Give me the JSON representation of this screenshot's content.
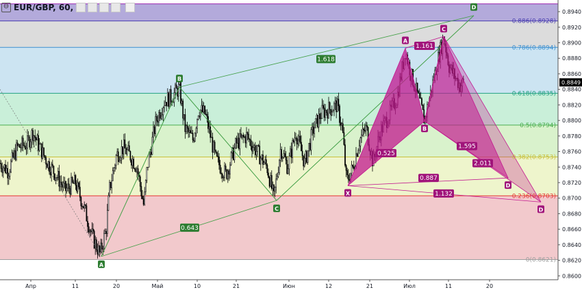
{
  "legend": {
    "symbol": "EUR/GBP, 60,",
    "collapse_glyph": "⊖"
  },
  "colors": {
    "candle": "#000000",
    "pattern_fill": "#c2188f",
    "pattern_label": "#a0147a",
    "green_line": "#43a047",
    "green_label": "#2e7d32",
    "price_tag_bg": "#000000"
  },
  "chart_data": {
    "type": "candlestick",
    "symbol": "EUR/GBP",
    "interval": "60",
    "ylim": [
      0.8595,
      0.8955
    ],
    "x_ticks": [
      {
        "i": 45,
        "label": "Апр"
      },
      {
        "i": 110,
        "label": "11"
      },
      {
        "i": 170,
        "label": "20"
      },
      {
        "i": 230,
        "label": "Май"
      },
      {
        "i": 288,
        "label": "10"
      },
      {
        "i": 345,
        "label": "21"
      },
      {
        "i": 422,
        "label": "Июн"
      },
      {
        "i": 480,
        "label": "12"
      },
      {
        "i": 540,
        "label": "21"
      },
      {
        "i": 598,
        "label": "Июл"
      },
      {
        "i": 655,
        "label": "11"
      },
      {
        "i": 715,
        "label": "20"
      }
    ],
    "y_ticks": [
      "0.8600",
      "0.8620",
      "0.8640",
      "0.8660",
      "0.8680",
      "0.8700",
      "0.8720",
      "0.8740",
      "0.8760",
      "0.8780",
      "0.8800",
      "0.8820",
      "0.8840",
      "0.8860",
      "0.8880",
      "0.8900",
      "0.8920",
      "0.8940"
    ],
    "y_tick_values": [
      0.86,
      0.862,
      0.864,
      0.866,
      0.868,
      0.87,
      0.872,
      0.874,
      0.876,
      0.878,
      0.88,
      0.882,
      0.884,
      0.886,
      0.888,
      0.89,
      0.892,
      0.894
    ],
    "current_price": {
      "value": 0.8849,
      "label": "0.8849"
    },
    "fibonacci": [
      {
        "ratio": 1.0,
        "price": 0.895,
        "label": "",
        "line": "#9c27b0"
      },
      {
        "ratio": 0.886,
        "price": 0.8928,
        "label": "0.886(0.8928)",
        "line": "#4a3fb0",
        "fill": "#b3aadb"
      },
      {
        "ratio": 0.786,
        "price": 0.8894,
        "label": "0.786(0.8894)",
        "line": "#3c8fd0",
        "fill": "#dcdcdc"
      },
      {
        "ratio": 0.618,
        "price": 0.8835,
        "label": "0.618(0.8835)",
        "line": "#20a080",
        "fill": "#cce4f2"
      },
      {
        "ratio": 0.5,
        "price": 0.8794,
        "label": "0.5(0.8794)",
        "line": "#4caf50",
        "fill": "#c9efd9"
      },
      {
        "ratio": 0.382,
        "price": 0.8753,
        "label": "0.382(0.8753)",
        "line": "#c8c03c",
        "fill": "#d9f2cc"
      },
      {
        "ratio": 0.236,
        "price": 0.8703,
        "label": "0.236(0.8703)",
        "line": "#e53935",
        "fill": "#eef5cc"
      },
      {
        "ratio": 0.0,
        "price": 0.8621,
        "label": "0(0.8621)",
        "line": "#9e9e9e",
        "fill": "#f2c9cc"
      }
    ],
    "abcd_green": {
      "points": [
        {
          "label": "A",
          "i": 148,
          "price": 0.8625
        },
        {
          "label": "B",
          "i": 262,
          "price": 0.8843
        },
        {
          "label": "C",
          "i": 404,
          "price": 0.8697
        },
        {
          "label": "D",
          "i": 692,
          "price": 0.8935
        }
      ],
      "ratios": [
        {
          "label": "0.643",
          "i": 277,
          "price": 0.8662
        },
        {
          "label": "1.618",
          "i": 476,
          "price": 0.8879
        }
      ]
    },
    "harmonic": {
      "points": [
        {
          "label": "X",
          "i": 508,
          "price": 0.8716
        },
        {
          "label": "A",
          "i": 592,
          "price": 0.8893
        },
        {
          "label": "B",
          "i": 620,
          "price": 0.8799
        },
        {
          "label": "C",
          "i": 648,
          "price": 0.8908
        },
        {
          "label": "D",
          "i": 742,
          "price": 0.8726
        },
        {
          "label": "D",
          "i": 790,
          "price": 0.8695
        }
      ],
      "ratios": [
        {
          "label": "0.525",
          "i": 564,
          "price": 0.8758
        },
        {
          "label": "1.161",
          "i": 620,
          "price": 0.8896
        },
        {
          "label": "1.595",
          "i": 682,
          "price": 0.8767
        },
        {
          "label": "2.011",
          "i": 705,
          "price": 0.8745
        },
        {
          "label": "0.887",
          "i": 626,
          "price": 0.8726
        },
        {
          "label": "1.132",
          "i": 648,
          "price": 0.8706
        }
      ]
    },
    "price_anchors": [
      [
        0,
        0.8745
      ],
      [
        12,
        0.8735
      ],
      [
        25,
        0.8765
      ],
      [
        40,
        0.877
      ],
      [
        48,
        0.8785
      ],
      [
        58,
        0.8765
      ],
      [
        70,
        0.8745
      ],
      [
        82,
        0.873
      ],
      [
        95,
        0.871
      ],
      [
        110,
        0.872
      ],
      [
        122,
        0.869
      ],
      [
        135,
        0.865
      ],
      [
        146,
        0.8628
      ],
      [
        155,
        0.866
      ],
      [
        160,
        0.8712
      ],
      [
        170,
        0.8755
      ],
      [
        180,
        0.8765
      ],
      [
        190,
        0.8755
      ],
      [
        200,
        0.874
      ],
      [
        210,
        0.869
      ],
      [
        215,
        0.874
      ],
      [
        228,
        0.88
      ],
      [
        240,
        0.8825
      ],
      [
        250,
        0.883
      ],
      [
        262,
        0.8842
      ],
      [
        270,
        0.879
      ],
      [
        282,
        0.8775
      ],
      [
        290,
        0.8815
      ],
      [
        300,
        0.8808
      ],
      [
        315,
        0.875
      ],
      [
        330,
        0.873
      ],
      [
        345,
        0.877
      ],
      [
        360,
        0.878
      ],
      [
        375,
        0.876
      ],
      [
        390,
        0.874
      ],
      [
        400,
        0.87
      ],
      [
        410,
        0.8765
      ],
      [
        420,
        0.874
      ],
      [
        432,
        0.8785
      ],
      [
        445,
        0.8745
      ],
      [
        458,
        0.879
      ],
      [
        470,
        0.881
      ],
      [
        482,
        0.8815
      ],
      [
        492,
        0.882
      ],
      [
        500,
        0.879
      ],
      [
        506,
        0.8722
      ],
      [
        515,
        0.8738
      ],
      [
        525,
        0.8775
      ],
      [
        535,
        0.879
      ],
      [
        545,
        0.8745
      ],
      [
        555,
        0.8785
      ],
      [
        570,
        0.881
      ],
      [
        580,
        0.883
      ],
      [
        592,
        0.889
      ],
      [
        600,
        0.886
      ],
      [
        610,
        0.8832
      ],
      [
        620,
        0.88
      ],
      [
        630,
        0.884
      ],
      [
        640,
        0.888
      ],
      [
        648,
        0.8908
      ],
      [
        656,
        0.887
      ],
      [
        665,
        0.8855
      ],
      [
        672,
        0.8845
      ],
      [
        678,
        0.8849
      ]
    ]
  }
}
